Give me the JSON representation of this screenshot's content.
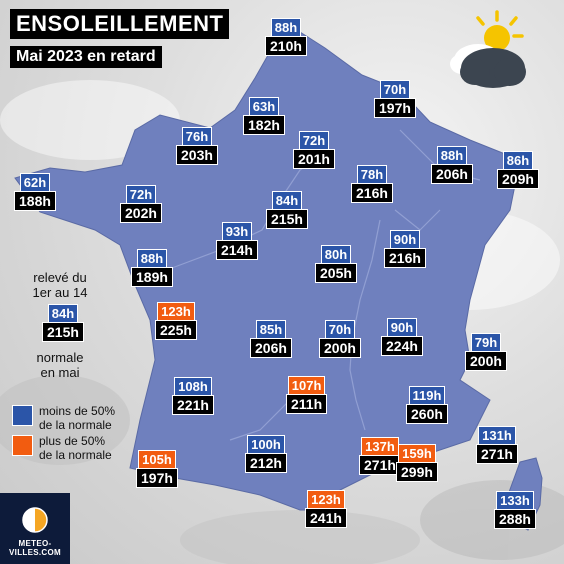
{
  "title": "ENSOLEILLEMENT",
  "subtitle": "Mai 2023 en retard",
  "colors": {
    "map_fill": "#6f80be",
    "below_normal": "#2b55a8",
    "above_normal": "#f25c10",
    "label_bg": "#000000"
  },
  "icons": {
    "weather": "sun-behind-cloud-icon",
    "logo": "meteo-villes-logo"
  },
  "stations": [
    {
      "ratio": "88h",
      "total": "210h",
      "above": false
    },
    {
      "ratio": "70h",
      "total": "197h",
      "above": false
    },
    {
      "ratio": "63h",
      "total": "182h",
      "above": false
    },
    {
      "ratio": "76h",
      "total": "203h",
      "above": false
    },
    {
      "ratio": "72h",
      "total": "201h",
      "above": false
    },
    {
      "ratio": "88h",
      "total": "206h",
      "above": false
    },
    {
      "ratio": "86h",
      "total": "209h",
      "above": false
    },
    {
      "ratio": "62h",
      "total": "188h",
      "above": false
    },
    {
      "ratio": "72h",
      "total": "202h",
      "above": false
    },
    {
      "ratio": "78h",
      "total": "216h",
      "above": false
    },
    {
      "ratio": "84h",
      "total": "215h",
      "above": false
    },
    {
      "ratio": "93h",
      "total": "214h",
      "above": false
    },
    {
      "ratio": "80h",
      "total": "205h",
      "above": false
    },
    {
      "ratio": "90h",
      "total": "216h",
      "above": false
    },
    {
      "ratio": "88h",
      "total": "189h",
      "above": false
    },
    {
      "ratio": "123h",
      "total": "225h",
      "above": true
    },
    {
      "ratio": "85h",
      "total": "206h",
      "above": false
    },
    {
      "ratio": "70h",
      "total": "200h",
      "above": false
    },
    {
      "ratio": "90h",
      "total": "224h",
      "above": false
    },
    {
      "ratio": "79h",
      "total": "200h",
      "above": false
    },
    {
      "ratio": "108h",
      "total": "221h",
      "above": false
    },
    {
      "ratio": "107h",
      "total": "211h",
      "above": true
    },
    {
      "ratio": "119h",
      "total": "260h",
      "above": false
    },
    {
      "ratio": "131h",
      "total": "271h",
      "above": false
    },
    {
      "ratio": "105h",
      "total": "197h",
      "above": true
    },
    {
      "ratio": "100h",
      "total": "212h",
      "above": false
    },
    {
      "ratio": "137h",
      "total": "271h",
      "above": true
    },
    {
      "ratio": "159h",
      "total": "299h",
      "above": true
    },
    {
      "ratio": "123h",
      "total": "241h",
      "above": true
    },
    {
      "ratio": "133h",
      "total": "288h",
      "above": false
    }
  ],
  "legend": {
    "explanation_top": "relevé du\n1er au 14",
    "sample_ratio": "84h",
    "sample_total": "215h",
    "explanation_bottom": "normale\nen mai",
    "below_label": "moins de 50%\nde la normale",
    "above_label": "plus de 50%\nde la normale"
  },
  "logo": {
    "line1": "METEO-",
    "line2": "VILLES.COM"
  }
}
